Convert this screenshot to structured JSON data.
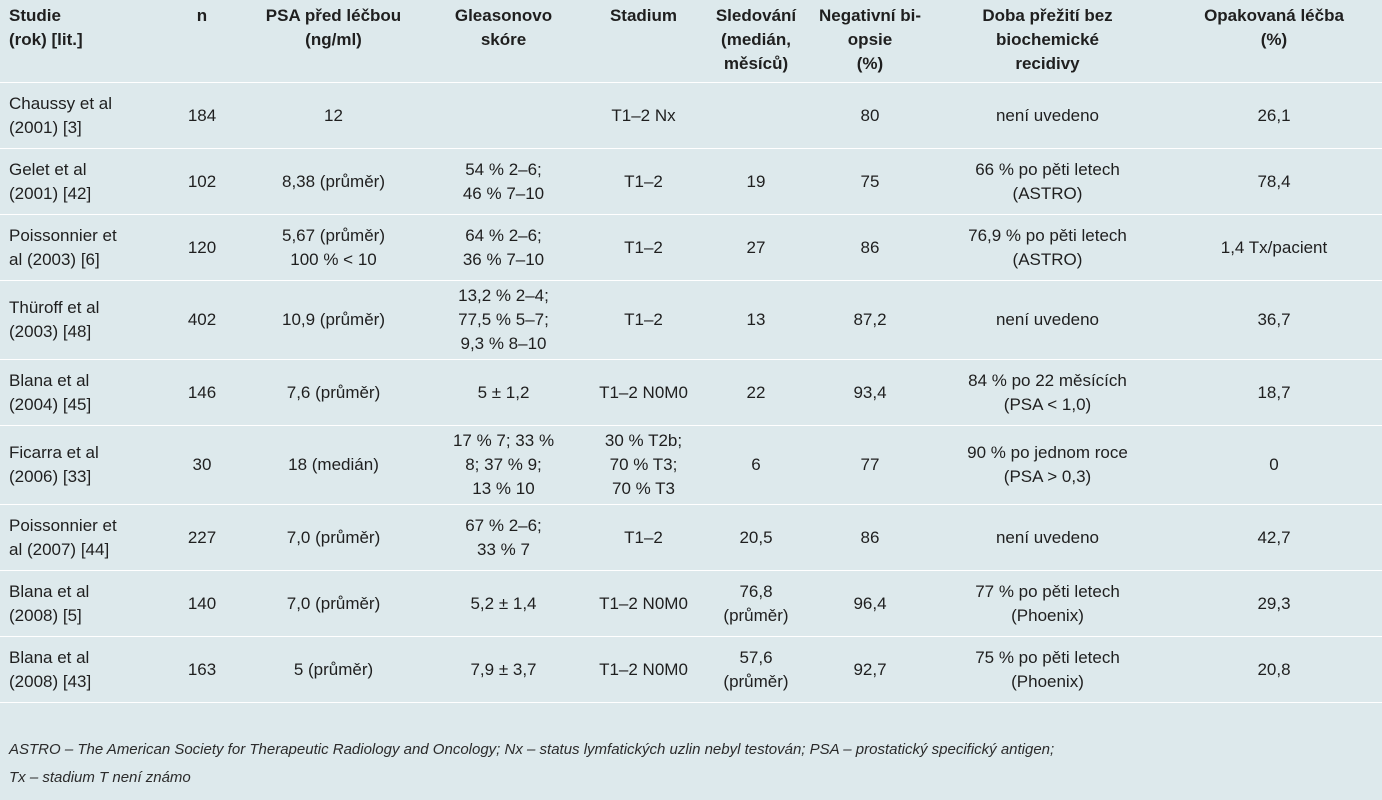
{
  "table": {
    "headers": [
      "Studie\n(rok) [lit.]",
      "n",
      "PSA před léčbou\n(ng/ml)",
      "Gleasonovo\nskóre",
      "Stadium",
      "Sledování\n(medián,\nměsíců)",
      "Negativní bi-\nopsie\n(%)",
      "Doba přežití bez\nbiochemické\nrecidivy",
      "Opakovaná léčba\n(%)"
    ],
    "rows": [
      [
        "Chaussy et al\n(2001) [3]",
        "184",
        "12",
        "",
        "T1–2 Nx",
        "",
        "80",
        "není uvedeno",
        "26,1"
      ],
      [
        "Gelet et al\n(2001) [42]",
        "102",
        "8,38 (průměr)",
        "54 % 2–6;\n46 % 7–10",
        "T1–2",
        "19",
        "75",
        "66 % po pěti letech\n(ASTRO)",
        "78,4"
      ],
      [
        "Poissonnier et\nal (2003) [6]",
        "120",
        "5,67 (průměr)\n100 % < 10",
        "64 % 2–6;\n36 % 7–10",
        "T1–2",
        "27",
        "86",
        "76,9 % po pěti letech\n(ASTRO)",
        "1,4 Tx/pacient"
      ],
      [
        "Thüroff et al\n(2003) [48]",
        "402",
        "10,9 (průměr)",
        "13,2 % 2–4;\n77,5 % 5–7;\n9,3 % 8–10",
        "T1–2",
        "13",
        "87,2",
        "není uvedeno",
        "36,7"
      ],
      [
        "Blana et al\n(2004) [45]",
        "146",
        "7,6 (průměr)",
        "5 ± 1,2",
        "T1–2 N0M0",
        "22",
        "93,4",
        "84 % po 22 měsících\n(PSA < 1,0)",
        "18,7"
      ],
      [
        "Ficarra et al\n(2006) [33]",
        "30",
        "18 (medián)",
        "17 % 7; 33 %\n8; 37 % 9;\n13 % 10",
        "30 % T2b;\n70 % T3;\n70 % T3",
        "6",
        "77",
        "90 % po jednom roce\n(PSA > 0,3)",
        "0"
      ],
      [
        "Poissonnier et\nal (2007) [44]",
        "227",
        "7,0 (průměr)",
        "67 % 2–6;\n33 % 7",
        "T1–2",
        "20,5",
        "86",
        "není uvedeno",
        "42,7"
      ],
      [
        "Blana et al\n(2008) [5]",
        "140",
        "7,0 (průměr)",
        "5,2 ± 1,4",
        "T1–2 N0M0",
        "76,8\n(průměr)",
        "96,4",
        "77 % po pěti letech\n(Phoenix)",
        "29,3"
      ],
      [
        "Blana et al\n(2008) [43]",
        "163",
        "5 (průměr)",
        "7,9 ± 3,7",
        "T1–2 N0M0",
        "57,6\n(průměr)",
        "92,7",
        "75 % po pěti letech\n(Phoenix)",
        "20,8"
      ]
    ]
  },
  "footnote": {
    "line1": "ASTRO – The American Society for Therapeutic Radiology and Oncology; Nx – status lymfatických uzlin nebyl testován; PSA – prostatický specifický antigen;",
    "line2": "Tx – stadium T není známo"
  }
}
